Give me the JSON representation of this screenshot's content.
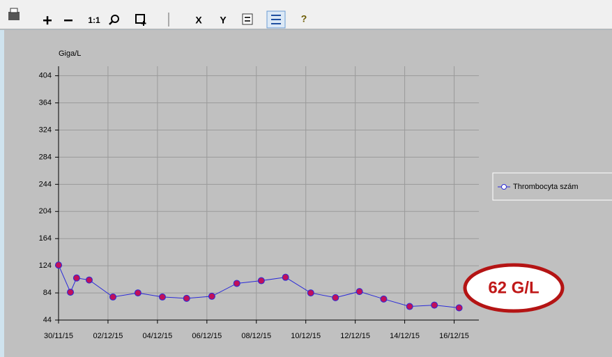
{
  "toolbar": {
    "buttons": [
      "1:1",
      "X",
      "Y"
    ]
  },
  "chart_data": {
    "type": "line",
    "y_label": "Giga/L",
    "x": [
      0,
      0.48,
      0.73,
      1.24,
      2.2,
      3.21,
      4.2,
      5.18,
      6.2,
      7.21,
      8.2,
      9.18,
      10.2,
      11.2,
      12.17,
      13.15,
      14.2,
      15.2,
      16.2
    ],
    "series": [
      {
        "name": "Thrombocyta szám",
        "color": "#2a2ad8",
        "marker_color": "#c0105a",
        "values": [
          125,
          85,
          106,
          103,
          78,
          84,
          78,
          76,
          79,
          98,
          102,
          107,
          84,
          77,
          86,
          75,
          64,
          66,
          62
        ]
      }
    ],
    "xlim": [
      0,
      17
    ],
    "xticks": [
      {
        "value": 0,
        "label": "30/11/15"
      },
      {
        "value": 2,
        "label": "02/12/15"
      },
      {
        "value": 4,
        "label": "04/12/15"
      },
      {
        "value": 6,
        "label": "06/12/15"
      },
      {
        "value": 8,
        "label": "08/12/15"
      },
      {
        "value": 10,
        "label": "10/12/15"
      },
      {
        "value": 12,
        "label": "12/12/15"
      },
      {
        "value": 14,
        "label": "14/12/15"
      },
      {
        "value": 16,
        "label": "16/12/15"
      }
    ],
    "ylim": [
      44,
      418
    ],
    "yticks": [
      44,
      84,
      124,
      164,
      204,
      244,
      284,
      324,
      364,
      404
    ],
    "grid": true,
    "legend": "right",
    "annotations": [
      "62 G/L"
    ]
  }
}
